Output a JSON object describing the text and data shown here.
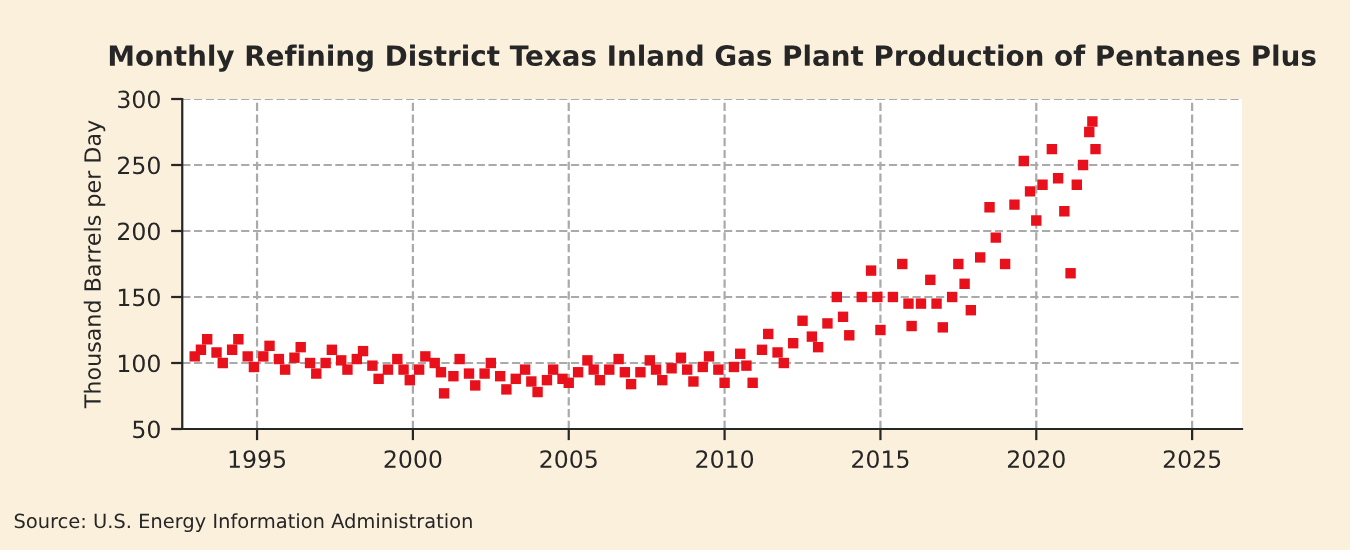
{
  "chart_data": {
    "type": "scatter",
    "title": "Monthly Refining District Texas Inland Gas Plant Production of Pentanes Plus",
    "ylabel": "Thousand Barrels per Day",
    "annotations": [
      "Source: U.S. Energy Information Administration"
    ],
    "x": [
      1993.0,
      1993.2,
      1993.4,
      1993.7,
      1993.9,
      1994.2,
      1994.4,
      1994.7,
      1994.9,
      1995.2,
      1995.4,
      1995.7,
      1995.9,
      1996.2,
      1996.4,
      1996.7,
      1996.9,
      1997.2,
      1997.4,
      1997.7,
      1997.9,
      1998.2,
      1998.4,
      1998.7,
      1998.9,
      1999.2,
      1999.5,
      1999.7,
      1999.9,
      2000.2,
      2000.4,
      2000.7,
      2000.9,
      2001.0,
      2001.3,
      2001.5,
      2001.8,
      2002.0,
      2002.3,
      2002.5,
      2002.8,
      2003.0,
      2003.3,
      2003.6,
      2003.8,
      2004.0,
      2004.3,
      2004.5,
      2004.8,
      2005.0,
      2005.3,
      2005.6,
      2005.8,
      2006.0,
      2006.3,
      2006.6,
      2006.8,
      2007.0,
      2007.3,
      2007.6,
      2007.8,
      2008.0,
      2008.3,
      2008.6,
      2008.8,
      2009.0,
      2009.3,
      2009.5,
      2009.8,
      2010.0,
      2010.3,
      2010.5,
      2010.7,
      2010.9,
      2011.2,
      2011.4,
      2011.7,
      2011.9,
      2012.2,
      2012.5,
      2012.8,
      2013.0,
      2013.3,
      2013.6,
      2013.8,
      2014.0,
      2014.4,
      2014.7,
      2014.9,
      2015.0,
      2015.4,
      2015.7,
      2015.9,
      2016.0,
      2016.3,
      2016.6,
      2016.8,
      2017.0,
      2017.3,
      2017.5,
      2017.7,
      2017.9,
      2018.2,
      2018.5,
      2018.7,
      2019.0,
      2019.3,
      2019.6,
      2019.8,
      2020.0,
      2020.2,
      2020.5,
      2020.7,
      2020.9,
      2021.1,
      2021.3,
      2021.5,
      2021.7,
      2021.8,
      2021.9
    ],
    "values": [
      105,
      110,
      118,
      108,
      100,
      110,
      118,
      105,
      97,
      105,
      113,
      103,
      95,
      104,
      112,
      100,
      92,
      100,
      110,
      102,
      95,
      103,
      109,
      98,
      88,
      95,
      103,
      95,
      87,
      95,
      105,
      100,
      93,
      77,
      90,
      103,
      92,
      83,
      92,
      100,
      90,
      80,
      88,
      95,
      86,
      78,
      87,
      95,
      88,
      85,
      93,
      102,
      95,
      87,
      95,
      103,
      93,
      84,
      93,
      102,
      95,
      87,
      96,
      104,
      95,
      86,
      97,
      105,
      95,
      85,
      97,
      107,
      98,
      85,
      110,
      122,
      108,
      100,
      115,
      132,
      120,
      112,
      130,
      150,
      135,
      121,
      150,
      170,
      150,
      125,
      150,
      175,
      145,
      128,
      145,
      163,
      145,
      127,
      150,
      175,
      160,
      140,
      180,
      218,
      195,
      175,
      220,
      253,
      230,
      208,
      235,
      262,
      240,
      215,
      168,
      235,
      250,
      275,
      283,
      262
    ],
    "color": "#e8101a",
    "marker": "square",
    "xlim": [
      1992.6,
      2026.6
    ],
    "ylim": [
      50,
      300
    ],
    "xticks": [
      1995,
      2000,
      2005,
      2010,
      2015,
      2020,
      2025
    ],
    "yticks": [
      50,
      100,
      150,
      200,
      250,
      300
    ],
    "grid": true
  }
}
